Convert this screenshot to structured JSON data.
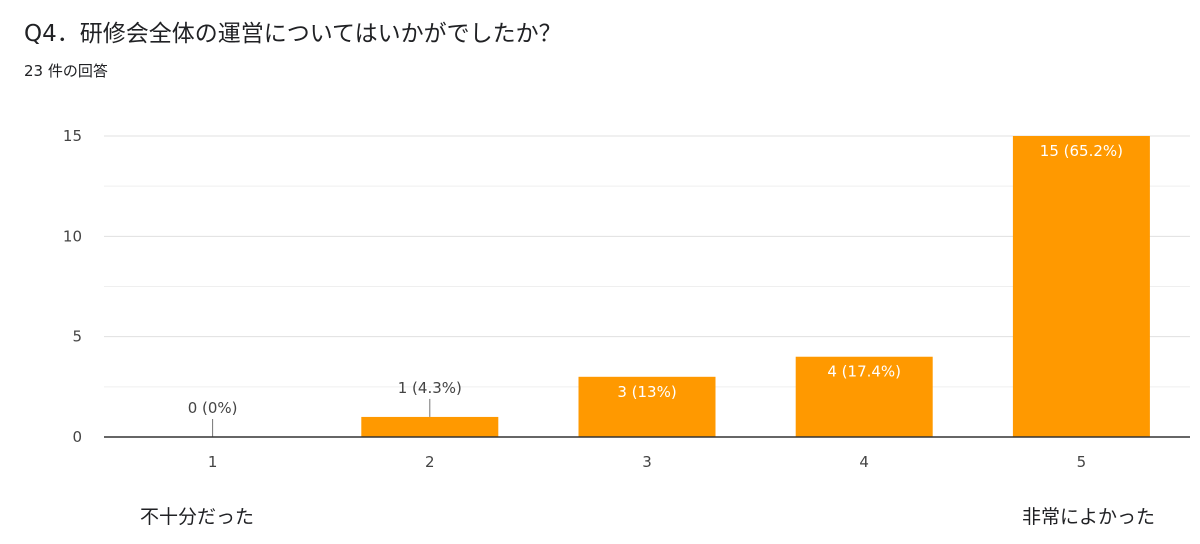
{
  "title": "Q4．研修会全体の運営についてはいかがでしたか？",
  "subtitle": "23 件の回答",
  "chart_data": {
    "type": "bar",
    "title": "Q4．研修会全体の運営についてはいかがでしたか？",
    "categories": [
      "1",
      "2",
      "3",
      "4",
      "5"
    ],
    "values": [
      0,
      1,
      3,
      4,
      15
    ],
    "value_labels": [
      "0 (0%)",
      "1 (4.3%)",
      "3 (13%)",
      "4 (17.4%)",
      "15 (65.2%)"
    ],
    "y_ticks": [
      "0",
      "5",
      "10",
      "15"
    ],
    "ylim": [
      0,
      15
    ],
    "grid": true,
    "bar_color": "#ff9900",
    "scale_labels": {
      "low": "不十分だった",
      "high": "非常によかった"
    }
  }
}
